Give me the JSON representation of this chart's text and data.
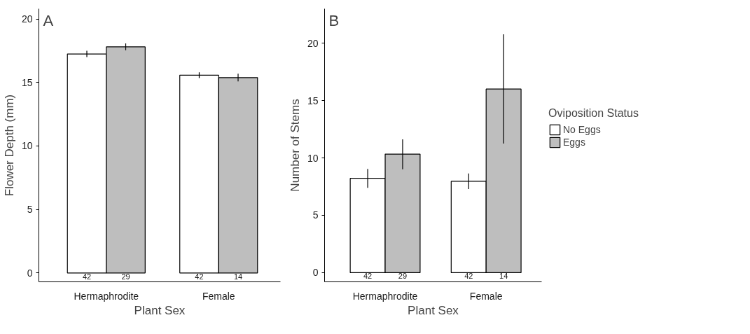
{
  "chart_data": [
    {
      "type": "bar",
      "title": "A",
      "ylabel": "Flower Depth (mm)",
      "xlabel": "Plant Sex",
      "categories": [
        "Hermaphrodite",
        "Female"
      ],
      "ylim": [
        -0.7,
        20.8
      ],
      "yticks": [
        0,
        5,
        10,
        15,
        20
      ],
      "grid": false,
      "series": [
        {
          "color": "#ffffff",
          "values": [
            17.24,
            15.57
          ],
          "errors": [
            0.25,
            0.23
          ]
        },
        {
          "color": "#bebebe",
          "values": [
            17.8,
            15.38
          ],
          "errors": [
            0.27,
            0.3
          ]
        }
      ],
      "annotations": [
        "42",
        "29",
        "42",
        "14"
      ]
    },
    {
      "type": "bar",
      "title": "B",
      "ylabel": "Number of Stems",
      "xlabel": "Plant Sex",
      "legend_title": "Oviposition Status",
      "legend": "right",
      "categories": [
        "Hermaphrodite",
        "Female"
      ],
      "ylim": [
        -0.8,
        23
      ],
      "yticks": [
        0,
        5,
        10,
        15,
        20
      ],
      "grid": false,
      "series": [
        {
          "name": "No Eggs",
          "color": "#ffffff",
          "values": [
            8.22,
            7.96
          ],
          "errors": [
            [
              7.39,
              9.04
            ],
            [
              7.28,
              8.64
            ]
          ]
        },
        {
          "name": "Eggs",
          "color": "#bebebe",
          "values": [
            10.33,
            16.0
          ],
          "errors": [
            [
              9.01,
              11.62
            ],
            [
              11.25,
              20.77
            ]
          ]
        }
      ],
      "annotations": [
        "42",
        "29",
        "42",
        "14"
      ]
    }
  ]
}
